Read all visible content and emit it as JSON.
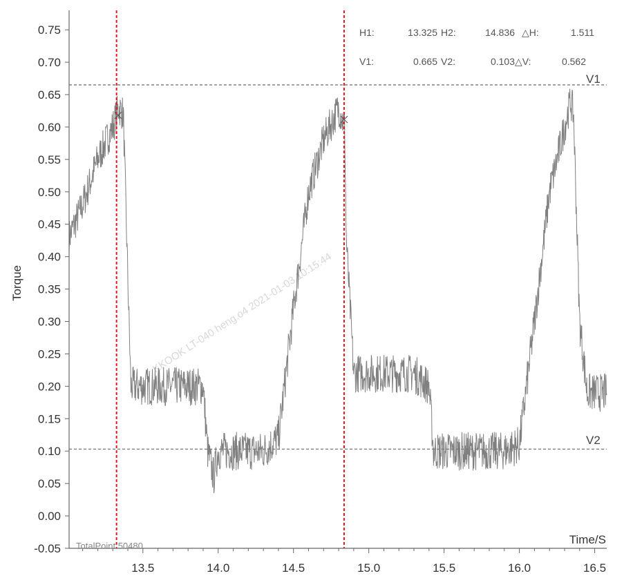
{
  "chart_data": {
    "type": "line",
    "ylabel": "Torque",
    "xlabel": "Time/S",
    "xlim": [
      13.01,
      16.58
    ],
    "ylim": [
      -0.05,
      0.78
    ],
    "x_ticks": [
      "13.5",
      "14.0",
      "14.5",
      "15.0",
      "15.5",
      "16.0",
      "16.5"
    ],
    "x_tick_values": [
      13.5,
      14.0,
      14.5,
      15.0,
      15.5,
      16.0,
      16.5
    ],
    "y_ticks": [
      "0.75",
      "0.70",
      "0.65",
      "0.60",
      "0.55",
      "0.50",
      "0.45",
      "0.40",
      "0.35",
      "0.30",
      "0.25",
      "0.20",
      "0.15",
      "0.10",
      "0.05",
      "0.00",
      "-0.05"
    ],
    "y_tick_values": [
      0.75,
      0.7,
      0.65,
      0.6,
      0.55,
      0.5,
      0.45,
      0.4,
      0.35,
      0.3,
      0.25,
      0.2,
      0.15,
      0.1,
      0.05,
      0.0,
      -0.05
    ],
    "series_color": "#808080",
    "cursor_color": "#e8141c",
    "series": [
      {
        "x": [
          13.01,
          13.1,
          13.2,
          13.3,
          13.34,
          13.37,
          13.39,
          13.42,
          13.5,
          13.7,
          13.9,
          13.93,
          13.97,
          14.0,
          14.1,
          14.3,
          14.4,
          14.5,
          14.6,
          14.7,
          14.8,
          14.84,
          14.85,
          14.9,
          15.0,
          15.1,
          15.2,
          15.3,
          15.4,
          15.43,
          15.47,
          15.5,
          15.7,
          15.9,
          16.0,
          16.1,
          16.2,
          16.3,
          16.34,
          16.36,
          16.4,
          16.45,
          16.58
        ],
        "y": [
          0.43,
          0.48,
          0.55,
          0.6,
          0.63,
          0.62,
          0.45,
          0.2,
          0.2,
          0.2,
          0.2,
          0.1,
          0.06,
          0.1,
          0.1,
          0.1,
          0.12,
          0.32,
          0.5,
          0.58,
          0.63,
          0.6,
          0.43,
          0.22,
          0.22,
          0.22,
          0.22,
          0.22,
          0.2,
          0.1,
          0.1,
          0.1,
          0.1,
          0.1,
          0.11,
          0.3,
          0.5,
          0.6,
          0.64,
          0.62,
          0.3,
          0.19,
          0.19
        ]
      }
    ],
    "cursors": {
      "H1": 13.325,
      "H2": 14.836,
      "V1": 0.665,
      "V2": 0.103
    },
    "line_labels": {
      "V1": "V1",
      "V2": "V2"
    },
    "readout": {
      "row1": [
        {
          "label": "H1:",
          "value": "13.325"
        },
        {
          "label": "H2:",
          "value": "14.836"
        },
        {
          "label": "△H:",
          "value": "1.511"
        }
      ],
      "row2": [
        {
          "label": "V1:",
          "value": "0.665"
        },
        {
          "label": "V2:",
          "value": "0.103"
        },
        {
          "label": "△V:",
          "value": "0.562"
        }
      ]
    },
    "total_points": "TotalPoint:50480",
    "watermark": "KKOOK LT-040 heng.o4 2021-01-03 10:15:44"
  }
}
